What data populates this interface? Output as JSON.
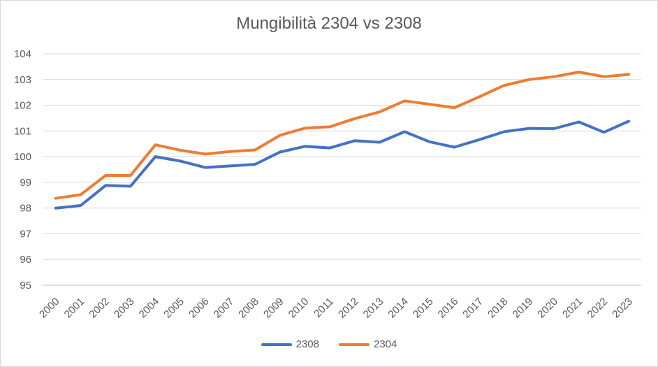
{
  "chart_data": {
    "type": "line",
    "title": "Mungibilità 2304 vs 2308",
    "xlabel": "",
    "ylabel": "",
    "ylim": [
      95,
      104
    ],
    "yticks": [
      "95",
      "96",
      "97",
      "98",
      "99",
      "100",
      "101",
      "102",
      "103",
      "104"
    ],
    "grid": true,
    "legend_position": "bottom",
    "categories": [
      "2000",
      "2001",
      "2002",
      "2003",
      "2004",
      "2005",
      "2006",
      "2007",
      "2008",
      "2009",
      "2010",
      "2011",
      "2012",
      "2013",
      "2014",
      "2015",
      "2016",
      "2017",
      "2018",
      "2019",
      "2020",
      "2021",
      "2022",
      "2023"
    ],
    "series": [
      {
        "name": "2308",
        "color": "#4472C4",
        "values": [
          98.0,
          98.1,
          98.88,
          98.85,
          100.0,
          99.83,
          99.58,
          99.64,
          99.7,
          100.18,
          100.4,
          100.34,
          100.62,
          100.56,
          100.97,
          100.58,
          100.37,
          100.66,
          100.97,
          101.1,
          101.09,
          101.35,
          100.95,
          101.38
        ]
      },
      {
        "name": "2304",
        "color": "#ED7D31",
        "values": [
          98.38,
          98.52,
          99.27,
          99.27,
          100.46,
          100.25,
          100.1,
          100.2,
          100.26,
          100.83,
          101.11,
          101.16,
          101.48,
          101.74,
          102.17,
          102.04,
          101.9,
          102.33,
          102.77,
          103.0,
          103.11,
          103.29,
          103.11,
          103.2
        ]
      }
    ]
  }
}
